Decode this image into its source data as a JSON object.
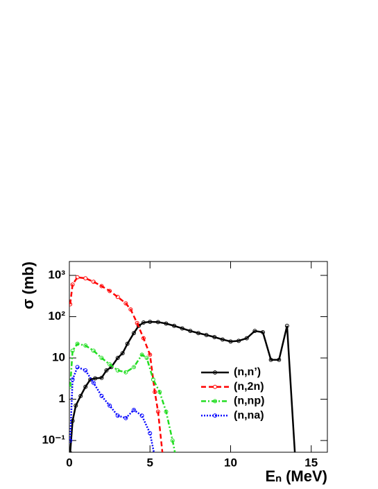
{
  "chart_data": {
    "type": "line",
    "x_label": "Eₙ (MeV)",
    "y_label": "σ (mb)",
    "xlim": [
      0,
      16
    ],
    "xticks": [
      0,
      5,
      10,
      15
    ],
    "ylim": [
      0.052,
      2170
    ],
    "log_y": true,
    "yticks": [
      {
        "value": 0.1,
        "label": "10⁻¹"
      },
      1,
      10,
      {
        "value": 100,
        "label": "10²"
      },
      {
        "value": 1000,
        "label": "10³"
      }
    ],
    "legend": "center-right",
    "series": [
      {
        "name": "(n,n’)",
        "color": "#000000",
        "line_style": "solid",
        "x": [
          0.05,
          0.2,
          0.4,
          0.7,
          1.0,
          1.3,
          1.6,
          2.0,
          2.3,
          2.6,
          3.0,
          3.3,
          3.6,
          4.0,
          4.3,
          4.6,
          5.0,
          5.5,
          6.0,
          6.5,
          7.0,
          7.5,
          8.0,
          8.5,
          9.0,
          9.5,
          10.0,
          10.5,
          11.0,
          11.5,
          12.0,
          12.5,
          13.0,
          13.5,
          14.0
        ],
        "values": [
          0.05,
          0.3,
          0.7,
          1.2,
          2.0,
          3.0,
          3.2,
          3.3,
          5,
          6,
          10,
          13,
          22,
          40,
          60,
          72,
          75,
          74,
          68,
          60,
          52,
          45,
          40,
          36,
          32,
          28,
          25,
          26,
          30,
          45,
          42,
          9,
          9,
          60,
          0.04
        ]
      },
      {
        "name": "(n,2n)",
        "color": "#ff0000",
        "line_style": "dashed",
        "x": [
          0.05,
          0.2,
          0.5,
          1.0,
          1.5,
          2.0,
          2.5,
          3.0,
          3.5,
          3.8,
          4.2,
          4.6,
          5.0,
          5.3,
          5.5,
          5.8
        ],
        "values": [
          200,
          600,
          900,
          850,
          700,
          550,
          420,
          300,
          210,
          150,
          70,
          30,
          12,
          1.5,
          0.5,
          0.04
        ]
      },
      {
        "name": "(n,np)",
        "color": "#22dd22",
        "line_style": "dashdot",
        "x": [
          0.05,
          0.2,
          0.5,
          1.0,
          1.5,
          2.0,
          2.5,
          3.0,
          3.5,
          4.0,
          4.5,
          4.8,
          5.2,
          5.6,
          6.0,
          6.4,
          6.6
        ],
        "values": [
          2,
          15,
          22,
          20,
          15,
          10,
          7,
          5,
          4.5,
          6,
          12,
          10,
          3,
          1.5,
          0.5,
          0.1,
          0.04
        ]
      },
      {
        "name": "(n,na)",
        "color": "#0000ff",
        "line_style": "dotted",
        "x": [
          0.05,
          0.2,
          0.5,
          1.0,
          1.5,
          2.0,
          2.5,
          3.0,
          3.5,
          4.0,
          4.5,
          5.0,
          5.3
        ],
        "values": [
          0.1,
          3,
          6,
          5,
          2.5,
          1.2,
          0.7,
          0.4,
          0.35,
          0.55,
          0.4,
          0.15,
          0.04
        ]
      }
    ]
  }
}
